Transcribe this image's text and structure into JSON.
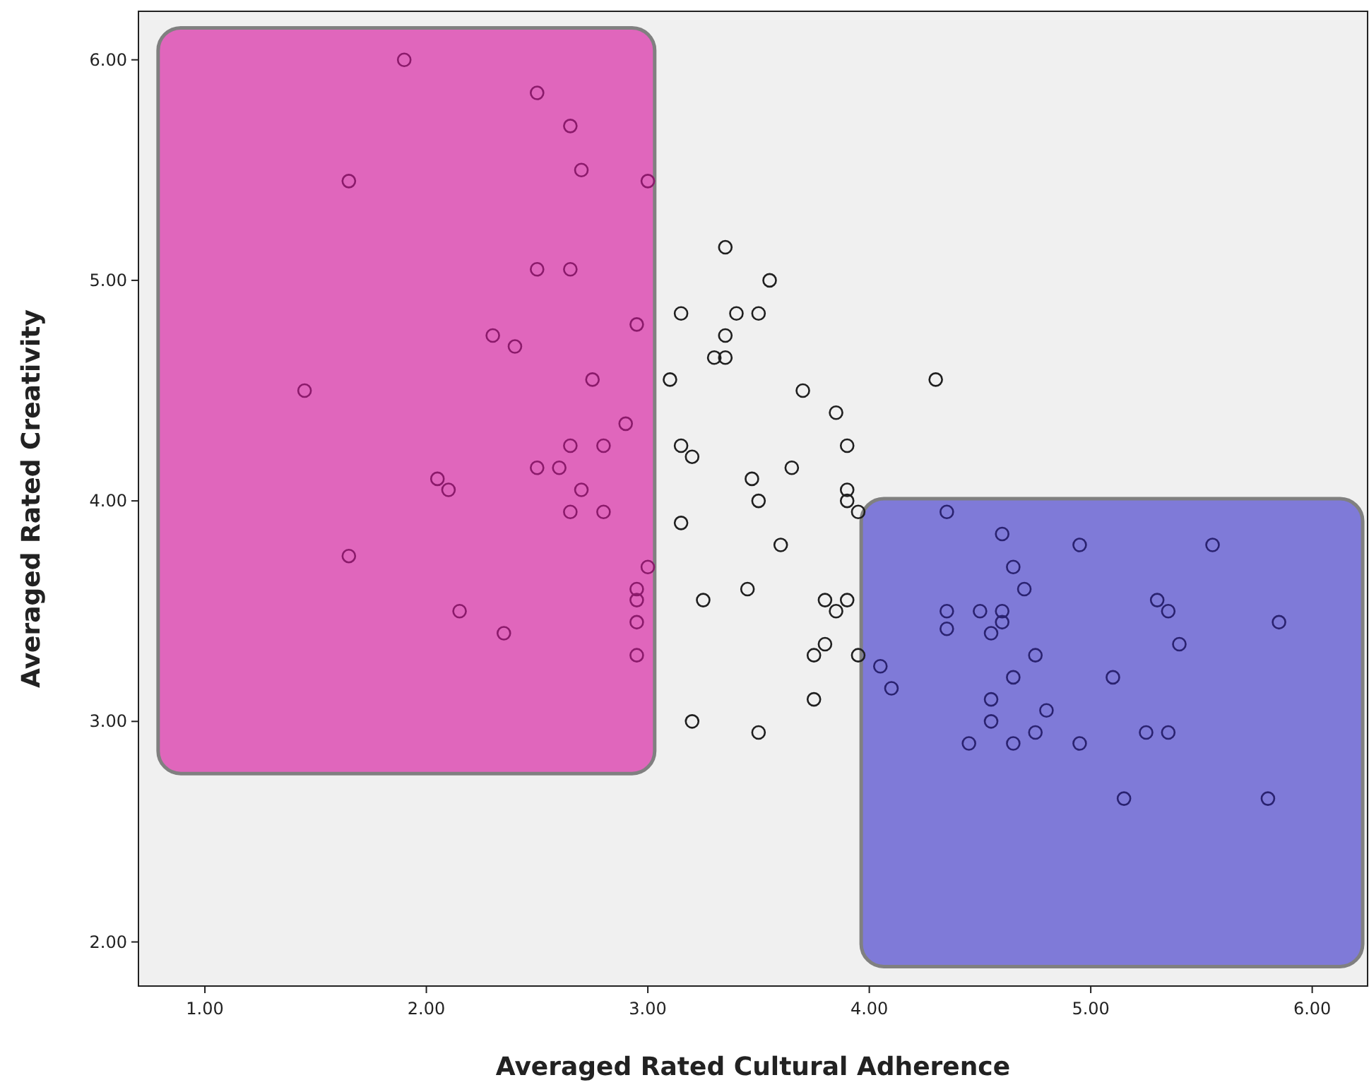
{
  "chart_data": {
    "type": "scatter",
    "xlabel": "Averaged Rated Cultural Adherence",
    "ylabel": "Averaged Rated Creativity",
    "xlim": [
      0.7,
      6.25
    ],
    "ylim": [
      1.8,
      6.22
    ],
    "xticks": [
      {
        "value": 1,
        "label": "1.00"
      },
      {
        "value": 2,
        "label": "2.00"
      },
      {
        "value": 3,
        "label": "3.00"
      },
      {
        "value": 4,
        "label": "4.00"
      },
      {
        "value": 5,
        "label": "5.00"
      },
      {
        "value": 6,
        "label": "6.00"
      }
    ],
    "yticks": [
      {
        "value": 2,
        "label": "2.00"
      },
      {
        "value": 3,
        "label": "3.00"
      },
      {
        "value": 4,
        "label": "4.00"
      },
      {
        "value": 5,
        "label": "5.00"
      },
      {
        "value": 6,
        "label": "6.00"
      }
    ],
    "marker": "circle",
    "grid": false,
    "series": [
      {
        "color": "#8b1a6b",
        "x": [
          1.9,
          2.5,
          2.65,
          2.7,
          1.65,
          3.0,
          2.5,
          2.65,
          2.95,
          2.3,
          2.4,
          1.45,
          2.75,
          2.9,
          2.65,
          2.8,
          2.05,
          2.1,
          2.5,
          2.6,
          2.7,
          2.65,
          2.8,
          1.65,
          3.0,
          2.95,
          2.95,
          2.15,
          2.95,
          2.35,
          2.95
        ],
        "values": [
          6.0,
          5.85,
          5.7,
          5.5,
          5.45,
          5.45,
          5.05,
          5.05,
          4.8,
          4.75,
          4.7,
          4.5,
          4.55,
          4.35,
          4.25,
          4.25,
          4.1,
          4.05,
          4.15,
          4.15,
          4.05,
          3.95,
          3.95,
          3.75,
          3.7,
          3.6,
          3.55,
          3.5,
          3.45,
          3.4,
          3.3
        ]
      },
      {
        "color": "#1f1f1f",
        "x": [
          3.35,
          3.55,
          3.15,
          3.4,
          3.5,
          3.35,
          3.3,
          3.35,
          3.1,
          4.3,
          3.7,
          3.85,
          3.15,
          3.2,
          3.9,
          3.65,
          3.47,
          3.5,
          3.9,
          3.9,
          3.95,
          3.15,
          3.6,
          3.45,
          3.25,
          3.8,
          3.9,
          3.85,
          3.8,
          3.75,
          3.95,
          3.75,
          3.2,
          3.5
        ],
        "values": [
          5.15,
          5.0,
          4.85,
          4.85,
          4.85,
          4.75,
          4.65,
          4.65,
          4.55,
          4.55,
          4.5,
          4.4,
          4.25,
          4.2,
          4.25,
          4.15,
          4.1,
          4.0,
          4.05,
          4.0,
          3.95,
          3.9,
          3.8,
          3.6,
          3.55,
          3.55,
          3.55,
          3.5,
          3.35,
          3.3,
          3.3,
          3.1,
          3.0,
          2.95
        ]
      },
      {
        "color": "#2a2270",
        "x": [
          4.35,
          4.6,
          4.95,
          5.55,
          4.65,
          4.7,
          4.35,
          4.35,
          4.5,
          4.6,
          4.6,
          4.55,
          5.3,
          5.35,
          5.85,
          5.4,
          4.75,
          4.05,
          4.1,
          4.65,
          5.1,
          4.55,
          4.8,
          4.55,
          4.45,
          4.65,
          4.75,
          4.95,
          5.25,
          5.35,
          5.15,
          5.8
        ],
        "values": [
          3.95,
          3.85,
          3.8,
          3.8,
          3.7,
          3.6,
          3.5,
          3.42,
          3.5,
          3.5,
          3.45,
          3.4,
          3.55,
          3.5,
          3.45,
          3.35,
          3.3,
          3.25,
          3.15,
          3.2,
          3.2,
          3.1,
          3.05,
          3.0,
          2.9,
          2.9,
          2.95,
          2.9,
          2.95,
          2.95,
          2.65,
          2.65
        ]
      }
    ]
  }
}
